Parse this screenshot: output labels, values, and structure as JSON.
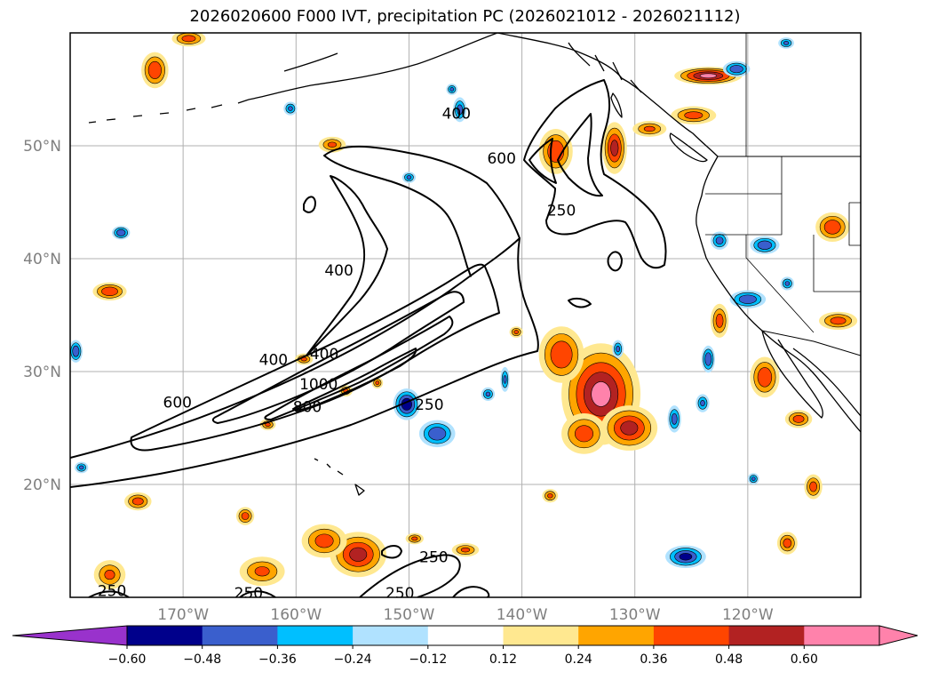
{
  "title": "2026020600 F000 IVT, precipitation PC (2026021012 - 2026021112)",
  "map": {
    "lon_range": [
      -180,
      -110
    ],
    "lat_range": [
      10,
      60
    ],
    "lat_ticks": [
      {
        "value": 50,
        "label": "50°N"
      },
      {
        "value": 40,
        "label": "40°N"
      },
      {
        "value": 30,
        "label": "30°N"
      },
      {
        "value": 20,
        "label": "20°N"
      }
    ],
    "lon_ticks": [
      {
        "value": -170,
        "label": "170°W"
      },
      {
        "value": -160,
        "label": "160°W"
      },
      {
        "value": -150,
        "label": "150°W"
      },
      {
        "value": -140,
        "label": "140°W"
      },
      {
        "value": -130,
        "label": "130°W"
      },
      {
        "value": -120,
        "label": "120°W"
      }
    ]
  },
  "ivt_contours": {
    "levels": [
      250,
      400,
      600,
      800,
      1000
    ],
    "labels": [
      {
        "text": "400",
        "lon": -145.8,
        "lat": 52.8
      },
      {
        "text": "600",
        "lon": -141.8,
        "lat": 48.8
      },
      {
        "text": "250",
        "lon": -136.5,
        "lat": 44.2
      },
      {
        "text": "400",
        "lon": -156.2,
        "lat": 38.9
      },
      {
        "text": "400",
        "lon": -157.5,
        "lat": 31.5
      },
      {
        "text": "400",
        "lon": -162.0,
        "lat": 31.0
      },
      {
        "text": "1000",
        "lon": -158.0,
        "lat": 28.8
      },
      {
        "text": "800",
        "lon": -159.0,
        "lat": 26.8
      },
      {
        "text": "600",
        "lon": -170.5,
        "lat": 27.2
      },
      {
        "text": "250",
        "lon": -148.2,
        "lat": 27.0
      },
      {
        "text": "250",
        "lon": -147.8,
        "lat": 13.5
      },
      {
        "text": "250",
        "lon": -150.8,
        "lat": 10.3
      },
      {
        "text": "250",
        "lon": -164.2,
        "lat": 10.3
      },
      {
        "text": "250",
        "lon": -176.3,
        "lat": 10.5
      }
    ]
  },
  "precipitation_pc": {
    "positive_blobs": [
      {
        "lon": -133,
        "lat": 28,
        "rlon": 3.5,
        "rlat": 4.5,
        "value": 0.6
      },
      {
        "lon": -136.5,
        "lat": 31.5,
        "rlon": 2,
        "rlat": 2.5,
        "value": 0.45
      },
      {
        "lon": -130.5,
        "lat": 25,
        "rlon": 2.5,
        "rlat": 2,
        "value": 0.5
      },
      {
        "lon": -134.5,
        "lat": 24.5,
        "rlon": 2,
        "rlat": 1.8,
        "value": 0.4
      },
      {
        "lon": -154.5,
        "lat": 13.8,
        "rlon": 2.5,
        "rlat": 2,
        "value": 0.5
      },
      {
        "lon": -157.5,
        "lat": 15,
        "rlon": 2,
        "rlat": 1.5,
        "value": 0.4
      },
      {
        "lon": -163,
        "lat": 12.3,
        "rlon": 2,
        "rlat": 1.3,
        "value": 0.36
      },
      {
        "lon": -176.5,
        "lat": 12,
        "rlon": 1.4,
        "rlat": 1.3,
        "value": 0.36
      },
      {
        "lon": -137,
        "lat": 49.5,
        "rlon": 1.5,
        "rlat": 2,
        "value": 0.45
      },
      {
        "lon": -131.8,
        "lat": 49.8,
        "rlon": 1.1,
        "rlat": 2.3,
        "value": 0.5
      },
      {
        "lon": -123.5,
        "lat": 56.2,
        "rlon": 3,
        "rlat": 0.8,
        "value": 0.6
      },
      {
        "lon": -124.8,
        "lat": 52.7,
        "rlon": 2,
        "rlat": 0.8,
        "value": 0.4
      },
      {
        "lon": -128.7,
        "lat": 51.5,
        "rlon": 1.5,
        "rlat": 0.7,
        "value": 0.36
      },
      {
        "lon": -112.5,
        "lat": 42.8,
        "rlon": 1.5,
        "rlat": 1.3,
        "value": 0.45
      },
      {
        "lon": -112,
        "lat": 34.5,
        "rlon": 1.7,
        "rlat": 0.8,
        "value": 0.4
      },
      {
        "lon": -118.5,
        "lat": 29.5,
        "rlon": 1.3,
        "rlat": 1.8,
        "value": 0.45
      },
      {
        "lon": -122.5,
        "lat": 34.5,
        "rlon": 0.8,
        "rlat": 1.5,
        "value": 0.4
      },
      {
        "lon": -115.5,
        "lat": 25.8,
        "rlon": 1.2,
        "rlat": 0.8,
        "value": 0.4
      },
      {
        "lon": -172.5,
        "lat": 56.7,
        "rlon": 1.2,
        "rlat": 1.6,
        "value": 0.45
      },
      {
        "lon": -169.5,
        "lat": 59.5,
        "rlon": 1.5,
        "rlat": 0.7,
        "value": 0.4
      },
      {
        "lon": -176.5,
        "lat": 37.1,
        "rlon": 1.5,
        "rlat": 0.8,
        "value": 0.45
      },
      {
        "lon": -159.3,
        "lat": 31.1,
        "rlon": 0.8,
        "rlat": 0.5,
        "value": 0.36
      },
      {
        "lon": -162.5,
        "lat": 25.3,
        "rlon": 0.7,
        "rlat": 0.5,
        "value": 0.36
      },
      {
        "lon": -155.6,
        "lat": 28.3,
        "rlon": 0.6,
        "rlat": 0.5,
        "value": 0.36
      },
      {
        "lon": -152.8,
        "lat": 29,
        "rlon": 0.5,
        "rlat": 0.5,
        "value": 0.36
      },
      {
        "lon": -174,
        "lat": 18.5,
        "rlon": 1.2,
        "rlat": 0.8,
        "value": 0.4
      },
      {
        "lon": -164.5,
        "lat": 17.2,
        "rlon": 0.8,
        "rlat": 0.8,
        "value": 0.4
      },
      {
        "lon": -156.8,
        "lat": 50.1,
        "rlon": 1.2,
        "rlat": 0.7,
        "value": 0.36
      },
      {
        "lon": -137.5,
        "lat": 19,
        "rlon": 0.7,
        "rlat": 0.6,
        "value": 0.36
      },
      {
        "lon": -114.2,
        "lat": 19.8,
        "rlon": 0.8,
        "rlat": 1.1,
        "value": 0.4
      },
      {
        "lon": -116.5,
        "lat": 14.8,
        "rlon": 0.9,
        "rlat": 1,
        "value": 0.4
      },
      {
        "lon": -140.5,
        "lat": 33.5,
        "rlon": 0.6,
        "rlat": 0.5,
        "value": 0.36
      },
      {
        "lon": -145,
        "lat": 14.2,
        "rlon": 1.2,
        "rlat": 0.6,
        "value": 0.36
      },
      {
        "lon": -149.5,
        "lat": 15.2,
        "rlon": 0.8,
        "rlat": 0.5,
        "value": 0.36
      }
    ],
    "negative_blobs": [
      {
        "lon": -150.2,
        "lat": 27.1,
        "rlon": 1.2,
        "rlat": 1.4,
        "value": -0.55
      },
      {
        "lon": -147.5,
        "lat": 24.5,
        "rlon": 1.6,
        "rlat": 1.2,
        "value": -0.45
      },
      {
        "lon": -125.5,
        "lat": 13.6,
        "rlon": 1.8,
        "rlat": 1,
        "value": -0.5
      },
      {
        "lon": -120,
        "lat": 36.4,
        "rlon": 1.6,
        "rlat": 0.8,
        "value": -0.45
      },
      {
        "lon": -123.5,
        "lat": 31.1,
        "rlon": 0.6,
        "rlat": 1.2,
        "value": -0.45
      },
      {
        "lon": -126.5,
        "lat": 25.8,
        "rlon": 0.6,
        "rlat": 1.2,
        "value": -0.4
      },
      {
        "lon": -118.5,
        "lat": 41.2,
        "rlon": 1.3,
        "rlat": 0.8,
        "value": -0.45
      },
      {
        "lon": -122.5,
        "lat": 41.6,
        "rlon": 0.8,
        "rlat": 0.8,
        "value": -0.4
      },
      {
        "lon": -175.5,
        "lat": 42.3,
        "rlon": 0.8,
        "rlat": 0.6,
        "value": -0.45
      },
      {
        "lon": -145.5,
        "lat": 53.2,
        "rlon": 0.6,
        "rlat": 1.1,
        "value": -0.4
      },
      {
        "lon": -116.5,
        "lat": 37.8,
        "rlon": 0.6,
        "rlat": 0.6,
        "value": -0.36
      },
      {
        "lon": -121,
        "lat": 56.8,
        "rlon": 1.2,
        "rlat": 0.7,
        "value": -0.45
      },
      {
        "lon": -116.6,
        "lat": 59.1,
        "rlon": 0.7,
        "rlat": 0.5,
        "value": -0.36
      },
      {
        "lon": -179.5,
        "lat": 31.8,
        "rlon": 0.6,
        "rlat": 1,
        "value": -0.45
      },
      {
        "lon": -179,
        "lat": 21.5,
        "rlon": 0.6,
        "rlat": 0.5,
        "value": -0.36
      },
      {
        "lon": -141.5,
        "lat": 29.3,
        "rlon": 0.4,
        "rlat": 1.1,
        "value": -0.36
      },
      {
        "lon": -160.5,
        "lat": 53.3,
        "rlon": 0.6,
        "rlat": 0.6,
        "value": -0.36
      },
      {
        "lon": -150,
        "lat": 47.2,
        "rlon": 0.6,
        "rlat": 0.5,
        "value": -0.36
      },
      {
        "lon": -124,
        "lat": 27.2,
        "rlon": 0.6,
        "rlat": 0.8,
        "value": -0.36
      },
      {
        "lon": -131.5,
        "lat": 32,
        "rlon": 0.5,
        "rlat": 0.8,
        "value": -0.36
      },
      {
        "lon": -143,
        "lat": 28,
        "rlon": 0.6,
        "rlat": 0.6,
        "value": -0.36
      },
      {
        "lon": -146.2,
        "lat": 55,
        "rlon": 0.5,
        "rlat": 0.5,
        "value": -0.36
      },
      {
        "lon": -119.5,
        "lat": 20.5,
        "rlon": 0.5,
        "rlat": 0.5,
        "value": -0.36
      }
    ]
  },
  "colorbar": {
    "levels": [
      "−0.60",
      "−0.48",
      "−0.36",
      "−0.24",
      "−0.12",
      "0.12",
      "0.24",
      "0.36",
      "0.48",
      "0.60"
    ],
    "colors": [
      "#9932cc",
      "#00008b",
      "#3a5fcd",
      "#00bfff",
      "#b0e2ff",
      "#ffffff",
      "#ffe890",
      "#ffa500",
      "#ff4500",
      "#b22222",
      "#ff82ab"
    ],
    "under_color": "#9932cc",
    "over_color": "#ff82ab"
  },
  "colors": {
    "coast": "#000000",
    "contour": "#000000",
    "grid": "#b0b0b0",
    "tick_label": "#7f7f7f"
  }
}
